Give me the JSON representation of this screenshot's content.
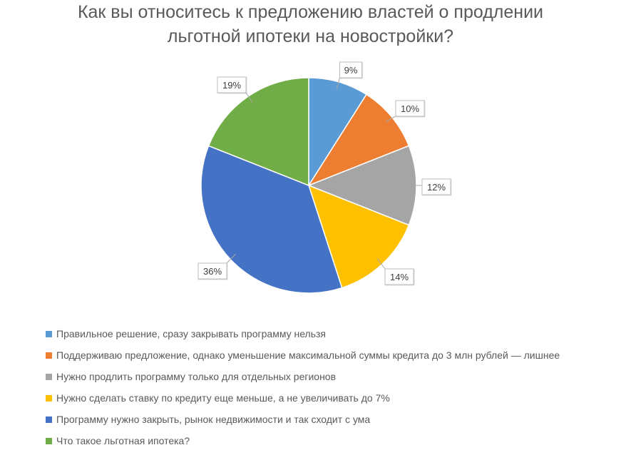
{
  "chart_data": {
    "type": "pie",
    "title_lines": [
      "Как вы относитесь к предложению властей о продлении",
      "льготной ипотеки на новостройки?"
    ],
    "slices": [
      {
        "label": "Правильное решение, сразу закрывать программу нельзя",
        "value": 9,
        "display": "9%",
        "color": "#5B9BD5"
      },
      {
        "label": "Поддерживаю предложение, однако уменьшение максимальной суммы кредита до 3 млн рублей — лишнее",
        "value": 10,
        "display": "10%",
        "color": "#ED7D31"
      },
      {
        "label": "Нужно продлить программу только для отдельных регионов",
        "value": 12,
        "display": "12%",
        "color": "#A5A5A5"
      },
      {
        "label": "Нужно сделать ставку по кредиту еще меньше, а не увеличивать до 7%",
        "value": 14,
        "display": "14%",
        "color": "#FFC000"
      },
      {
        "label": "Программу нужно закрыть, рынок недвижимости и так сходит с ума",
        "value": 36,
        "display": "36%",
        "color": "#4472C4"
      },
      {
        "label": "Что такое льготная ипотека?",
        "value": 19,
        "display": "19%",
        "color": "#70AD47"
      }
    ],
    "legend_position": "bottom-left",
    "data_labels": "outside-callout"
  }
}
